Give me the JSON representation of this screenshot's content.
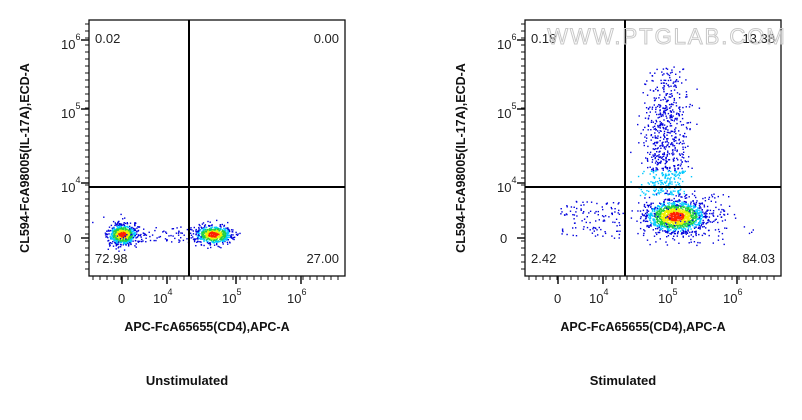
{
  "chart_data": [
    {
      "type": "scatter",
      "subtype": "flow-cytometry-density-dot-plot",
      "caption": "Unstimulated",
      "xlabel": "APC-FcA65655(CD4),APC-A",
      "ylabel": "CL594-FcA98005(IL-17A),ECD-A",
      "x_ticks": [
        "0",
        "10^4",
        "10^5",
        "10^6"
      ],
      "y_ticks": [
        "0",
        "10^4",
        "10^5",
        "10^6"
      ],
      "scale": "biexponential",
      "quadrants": {
        "upper_left": "0.02",
        "upper_right": "0.00",
        "lower_left": "72.98",
        "lower_right": "27.00"
      }
    },
    {
      "type": "scatter",
      "subtype": "flow-cytometry-density-dot-plot",
      "caption": "Stimulated",
      "xlabel": "APC-FcA65655(CD4),APC-A",
      "ylabel": "CL594-FcA98005(IL-17A),ECD-A",
      "x_ticks": [
        "0",
        "10^4",
        "10^5",
        "10^6"
      ],
      "y_ticks": [
        "0",
        "10^4",
        "10^5",
        "10^6"
      ],
      "scale": "biexponential",
      "quadrants": {
        "upper_left": "0.18",
        "upper_right": "13.38",
        "lower_left": "2.42",
        "lower_right": "84.03"
      }
    }
  ],
  "watermark": "WWW.PTGLAB.COM",
  "density_colors": [
    "#0000dd",
    "#00c8ff",
    "#20d040",
    "#f0f000",
    "#ff2000"
  ]
}
